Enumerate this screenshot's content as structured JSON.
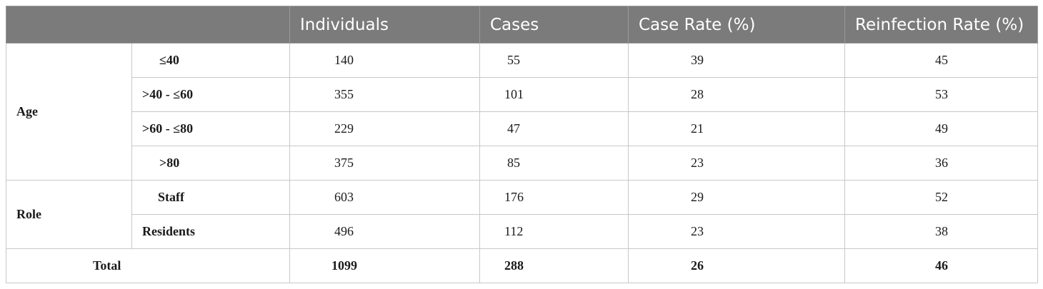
{
  "header": {
    "blank": "",
    "individuals": "Individuals",
    "cases": "Cases",
    "case_rate": "Case Rate (%)",
    "reinfection_rate": "Reinfection Rate (%)"
  },
  "groups": {
    "age": "Age",
    "role": "Role"
  },
  "rows": [
    {
      "label": "≤40",
      "individuals": "140",
      "cases": "55",
      "case_rate": "39",
      "reinfection_rate": "45"
    },
    {
      "label": ">40 - ≤60",
      "individuals": "355",
      "cases": "101",
      "case_rate": "28",
      "reinfection_rate": "53"
    },
    {
      "label": ">60 - ≤80",
      "individuals": "229",
      "cases": "47",
      "case_rate": "21",
      "reinfection_rate": "49"
    },
    {
      "label": ">80",
      "individuals": "375",
      "cases": "85",
      "case_rate": "23",
      "reinfection_rate": "36"
    },
    {
      "label": "Staff",
      "individuals": "603",
      "cases": "176",
      "case_rate": "29",
      "reinfection_rate": "52"
    },
    {
      "label": "Residents",
      "individuals": "496",
      "cases": "112",
      "case_rate": "23",
      "reinfection_rate": "38"
    }
  ],
  "total": {
    "label": "Total",
    "individuals": "1099",
    "cases": "288",
    "case_rate": "26",
    "reinfection_rate": "46"
  }
}
